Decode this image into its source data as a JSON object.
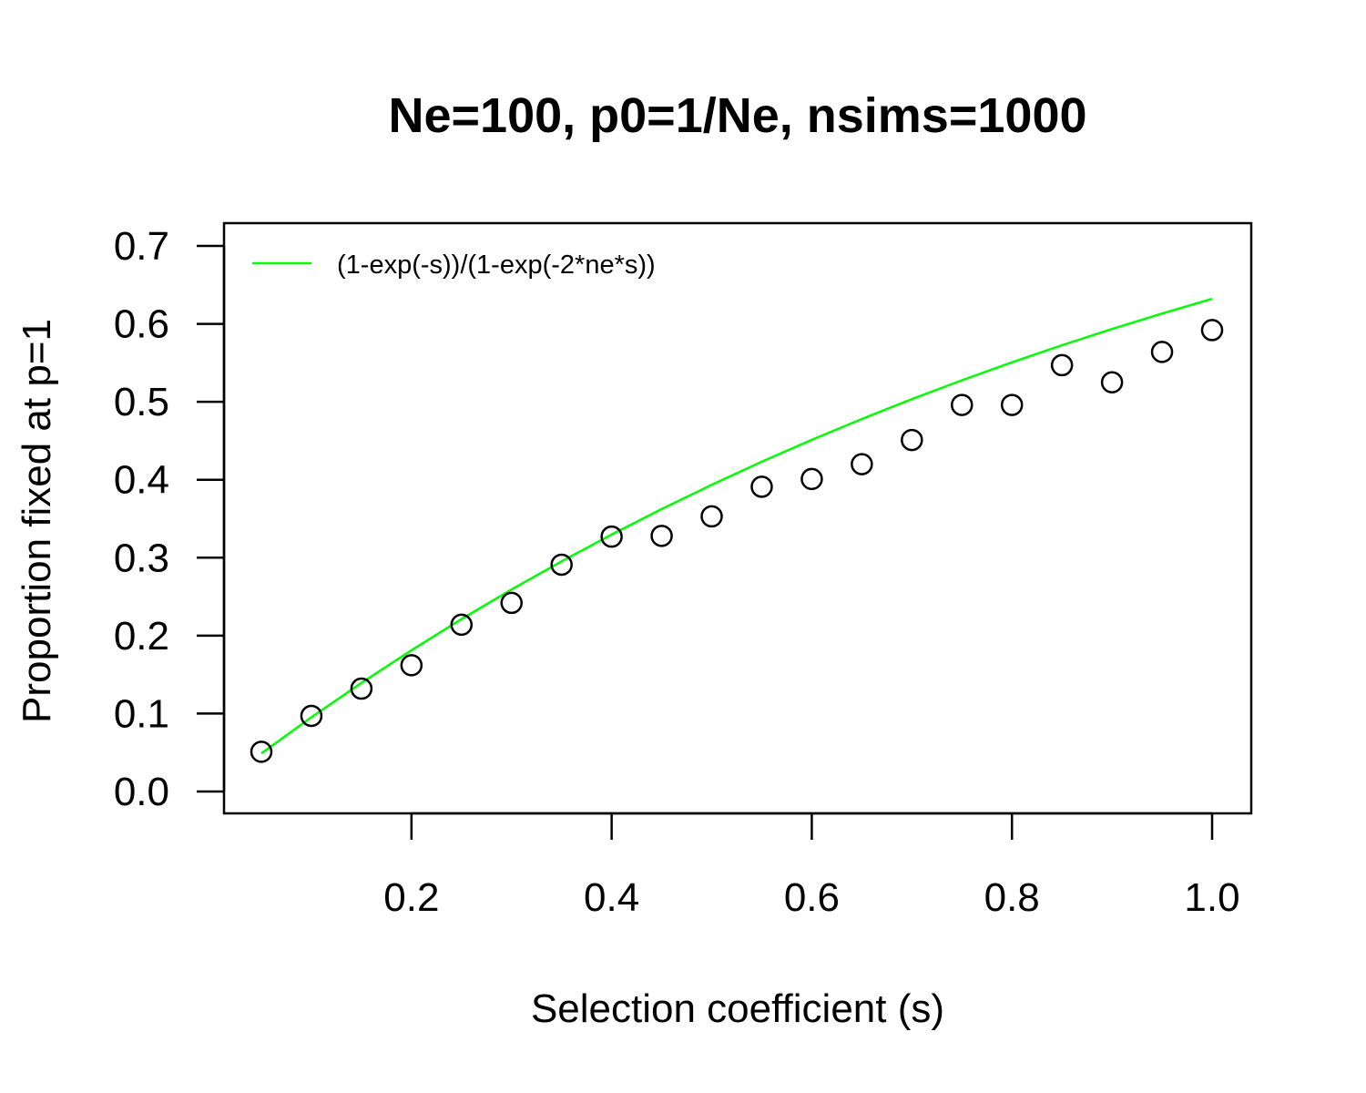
{
  "chart_data": {
    "type": "scatter",
    "title": "Ne=100, p0=1/Ne, nsims=1000",
    "xlabel": "Selection coefficient (s)",
    "ylabel": "Proportion fixed at p=1",
    "xlim": [
      0.05,
      1.0
    ],
    "ylim": [
      0.0,
      0.7
    ],
    "xticks": [
      "0.2",
      "0.4",
      "0.6",
      "0.8",
      "1.0"
    ],
    "yticks": [
      "0.0",
      "0.1",
      "0.2",
      "0.3",
      "0.4",
      "0.5",
      "0.6",
      "0.7"
    ],
    "grid": false,
    "legend_position": "top-left",
    "series": [
      {
        "kind": "points",
        "marker": "open-circle",
        "color": "#000000",
        "x": [
          0.05,
          0.1,
          0.15,
          0.2,
          0.25,
          0.3,
          0.35,
          0.4,
          0.45,
          0.5,
          0.55,
          0.6,
          0.65,
          0.7,
          0.75,
          0.8,
          0.85,
          0.9,
          0.95,
          1.0
        ],
        "y": [
          0.051,
          0.097,
          0.132,
          0.162,
          0.214,
          0.242,
          0.291,
          0.327,
          0.328,
          0.353,
          0.391,
          0.401,
          0.42,
          0.451,
          0.496,
          0.496,
          0.547,
          0.525,
          0.564,
          0.592
        ]
      },
      {
        "kind": "line",
        "name": "(1-exp(-s))/(1-exp(-2*ne*s))",
        "color": "#00ff00",
        "x": [
          0.05,
          0.1,
          0.15,
          0.2,
          0.25,
          0.3,
          0.35,
          0.4,
          0.45,
          0.5,
          0.55,
          0.6,
          0.65,
          0.7,
          0.75,
          0.8,
          0.85,
          0.9,
          0.95,
          1.0
        ],
        "y": [
          0.0488,
          0.0952,
          0.1393,
          0.1813,
          0.2212,
          0.2592,
          0.2953,
          0.3297,
          0.3624,
          0.3935,
          0.4231,
          0.4512,
          0.478,
          0.5034,
          0.5276,
          0.5507,
          0.5726,
          0.5934,
          0.6133,
          0.6321
        ]
      }
    ]
  }
}
